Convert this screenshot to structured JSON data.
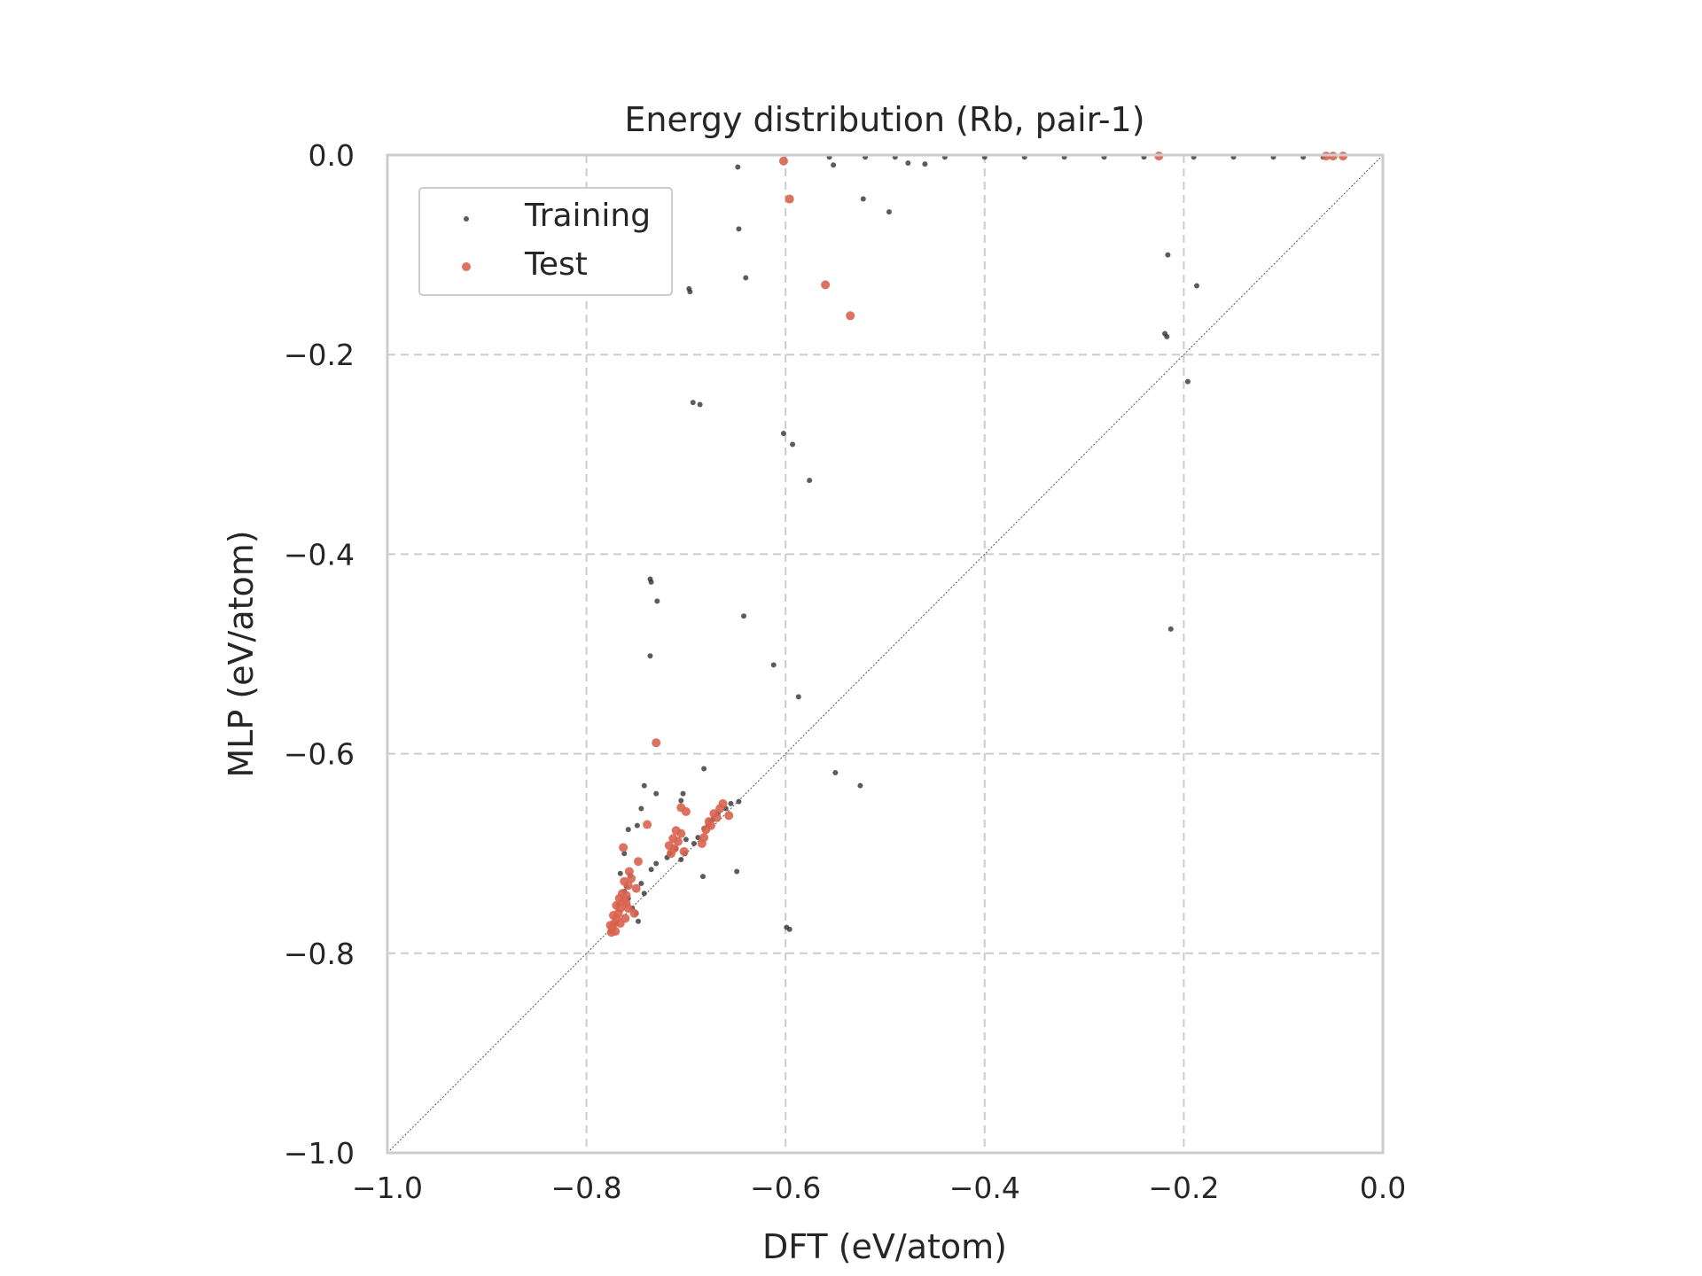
{
  "chart_data": {
    "type": "scatter",
    "title": "Energy distribution (Rb, pair-1)",
    "xlabel": "DFT (eV/atom)",
    "ylabel": "MLP (eV/atom)",
    "xlim": [
      -1.0,
      0.0
    ],
    "ylim": [
      -1.0,
      0.0
    ],
    "x_ticks": [
      -1.0,
      -0.8,
      -0.6,
      -0.4,
      -0.2,
      0.0
    ],
    "y_ticks": [
      -1.0,
      -0.8,
      -0.6,
      -0.4,
      -0.2,
      0.0
    ],
    "x_tick_labels": [
      "−1.0",
      "−0.8",
      "−0.6",
      "−0.4",
      "−0.2",
      "0.0"
    ],
    "y_tick_labels": [
      "−1.0",
      "−0.8",
      "−0.6",
      "−0.4",
      "−0.2",
      "0.0"
    ],
    "grid": true,
    "legend_position": "top-left",
    "reference_line": "y = x",
    "series": [
      {
        "name": "Training",
        "color": "#333333",
        "points": [
          [
            -0.648,
            -0.012
          ],
          [
            -0.552,
            -0.01
          ],
          [
            -0.522,
            -0.044
          ],
          [
            -0.496,
            -0.057
          ],
          [
            -0.477,
            -0.008
          ],
          [
            -0.46,
            -0.009
          ],
          [
            -0.556,
            -0.002
          ],
          [
            -0.52,
            -0.002
          ],
          [
            -0.49,
            -0.002
          ],
          [
            -0.44,
            -0.002
          ],
          [
            -0.4,
            -0.002
          ],
          [
            -0.36,
            -0.002
          ],
          [
            -0.32,
            -0.002
          ],
          [
            -0.28,
            -0.002
          ],
          [
            -0.24,
            -0.002
          ],
          [
            -0.19,
            -0.002
          ],
          [
            -0.15,
            -0.002
          ],
          [
            -0.11,
            -0.002
          ],
          [
            -0.08,
            -0.002
          ],
          [
            -0.06,
            -0.002
          ],
          [
            -0.647,
            -0.074
          ],
          [
            -0.64,
            -0.123
          ],
          [
            -0.696,
            -0.137
          ],
          [
            -0.697,
            -0.134
          ],
          [
            -0.216,
            -0.1
          ],
          [
            -0.187,
            -0.131
          ],
          [
            -0.217,
            -0.182
          ],
          [
            -0.219,
            -0.179
          ],
          [
            -0.196,
            -0.227
          ],
          [
            -0.693,
            -0.248
          ],
          [
            -0.686,
            -0.25
          ],
          [
            -0.602,
            -0.279
          ],
          [
            -0.593,
            -0.29
          ],
          [
            -0.576,
            -0.326
          ],
          [
            -0.735,
            -0.428
          ],
          [
            -0.736,
            -0.425
          ],
          [
            -0.729,
            -0.447
          ],
          [
            -0.642,
            -0.462
          ],
          [
            -0.213,
            -0.475
          ],
          [
            -0.736,
            -0.502
          ],
          [
            -0.612,
            -0.511
          ],
          [
            -0.587,
            -0.543
          ],
          [
            -0.55,
            -0.619
          ],
          [
            -0.525,
            -0.632
          ],
          [
            -0.682,
            -0.615
          ],
          [
            -0.742,
            -0.632
          ],
          [
            -0.73,
            -0.64
          ],
          [
            -0.745,
            -0.655
          ],
          [
            -0.749,
            -0.672
          ],
          [
            -0.758,
            -0.676
          ],
          [
            -0.762,
            -0.7
          ],
          [
            -0.756,
            -0.722
          ],
          [
            -0.649,
            -0.718
          ],
          [
            -0.683,
            -0.723
          ],
          [
            -0.599,
            -0.774
          ],
          [
            -0.596,
            -0.776
          ],
          [
            -0.703,
            -0.64
          ],
          [
            -0.705,
            -0.647
          ],
          [
            -0.647,
            -0.648
          ],
          [
            -0.655,
            -0.65
          ],
          [
            -0.66,
            -0.655
          ],
          [
            -0.668,
            -0.66
          ],
          [
            -0.673,
            -0.666
          ],
          [
            -0.678,
            -0.672
          ],
          [
            -0.701,
            -0.7
          ],
          [
            -0.705,
            -0.706
          ],
          [
            -0.71,
            -0.695
          ],
          [
            -0.7,
            -0.686
          ],
          [
            -0.716,
            -0.7
          ],
          [
            -0.719,
            -0.704
          ],
          [
            -0.73,
            -0.71
          ],
          [
            -0.735,
            -0.716
          ],
          [
            -0.745,
            -0.73
          ],
          [
            -0.742,
            -0.74
          ],
          [
            -0.75,
            -0.76
          ],
          [
            -0.758,
            -0.745
          ],
          [
            -0.762,
            -0.738
          ],
          [
            -0.768,
            -0.752
          ],
          [
            -0.771,
            -0.77
          ],
          [
            -0.775,
            -0.778
          ],
          [
            -0.766,
            -0.72
          ],
          [
            -0.76,
            -0.733
          ],
          [
            -0.754,
            -0.755
          ],
          [
            -0.748,
            -0.768
          ],
          [
            -0.676,
            -0.668
          ],
          [
            -0.682,
            -0.675
          ],
          [
            -0.688,
            -0.684
          ],
          [
            -0.692,
            -0.69
          ]
        ]
      },
      {
        "name": "Test",
        "color": "#d9634f",
        "points": [
          [
            -0.602,
            -0.006
          ],
          [
            -0.596,
            -0.044
          ],
          [
            -0.56,
            -0.13
          ],
          [
            -0.535,
            -0.161
          ],
          [
            -0.225,
            -0.001
          ],
          [
            -0.05,
            -0.001
          ],
          [
            -0.04,
            -0.001
          ],
          [
            -0.057,
            -0.001
          ],
          [
            -0.73,
            -0.589
          ],
          [
            -0.739,
            -0.671
          ],
          [
            -0.763,
            -0.694
          ],
          [
            -0.748,
            -0.708
          ],
          [
            -0.705,
            -0.654
          ],
          [
            -0.7,
            -0.658
          ],
          [
            -0.663,
            -0.65
          ],
          [
            -0.657,
            -0.662
          ],
          [
            -0.672,
            -0.66
          ],
          [
            -0.677,
            -0.668
          ],
          [
            -0.68,
            -0.676
          ],
          [
            -0.682,
            -0.684
          ],
          [
            -0.666,
            -0.655
          ],
          [
            -0.669,
            -0.664
          ],
          [
            -0.675,
            -0.672
          ],
          [
            -0.684,
            -0.69
          ],
          [
            -0.705,
            -0.68
          ],
          [
            -0.708,
            -0.688
          ],
          [
            -0.712,
            -0.695
          ],
          [
            -0.715,
            -0.7
          ],
          [
            -0.702,
            -0.698
          ],
          [
            -0.71,
            -0.677
          ],
          [
            -0.713,
            -0.685
          ],
          [
            -0.717,
            -0.692
          ],
          [
            -0.755,
            -0.725
          ],
          [
            -0.758,
            -0.732
          ],
          [
            -0.76,
            -0.742
          ],
          [
            -0.763,
            -0.748
          ],
          [
            -0.766,
            -0.755
          ],
          [
            -0.768,
            -0.76
          ],
          [
            -0.77,
            -0.765
          ],
          [
            -0.772,
            -0.77
          ],
          [
            -0.774,
            -0.775
          ],
          [
            -0.775,
            -0.779
          ],
          [
            -0.764,
            -0.74
          ],
          [
            -0.758,
            -0.755
          ],
          [
            -0.752,
            -0.76
          ],
          [
            -0.77,
            -0.752
          ],
          [
            -0.767,
            -0.745
          ],
          [
            -0.761,
            -0.765
          ],
          [
            -0.757,
            -0.718
          ],
          [
            -0.762,
            -0.728
          ],
          [
            -0.75,
            -0.735
          ],
          [
            -0.773,
            -0.762
          ],
          [
            -0.776,
            -0.772
          ],
          [
            -0.771,
            -0.778
          ],
          [
            -0.766,
            -0.77
          ],
          [
            -0.76,
            -0.75
          ]
        ]
      }
    ]
  }
}
